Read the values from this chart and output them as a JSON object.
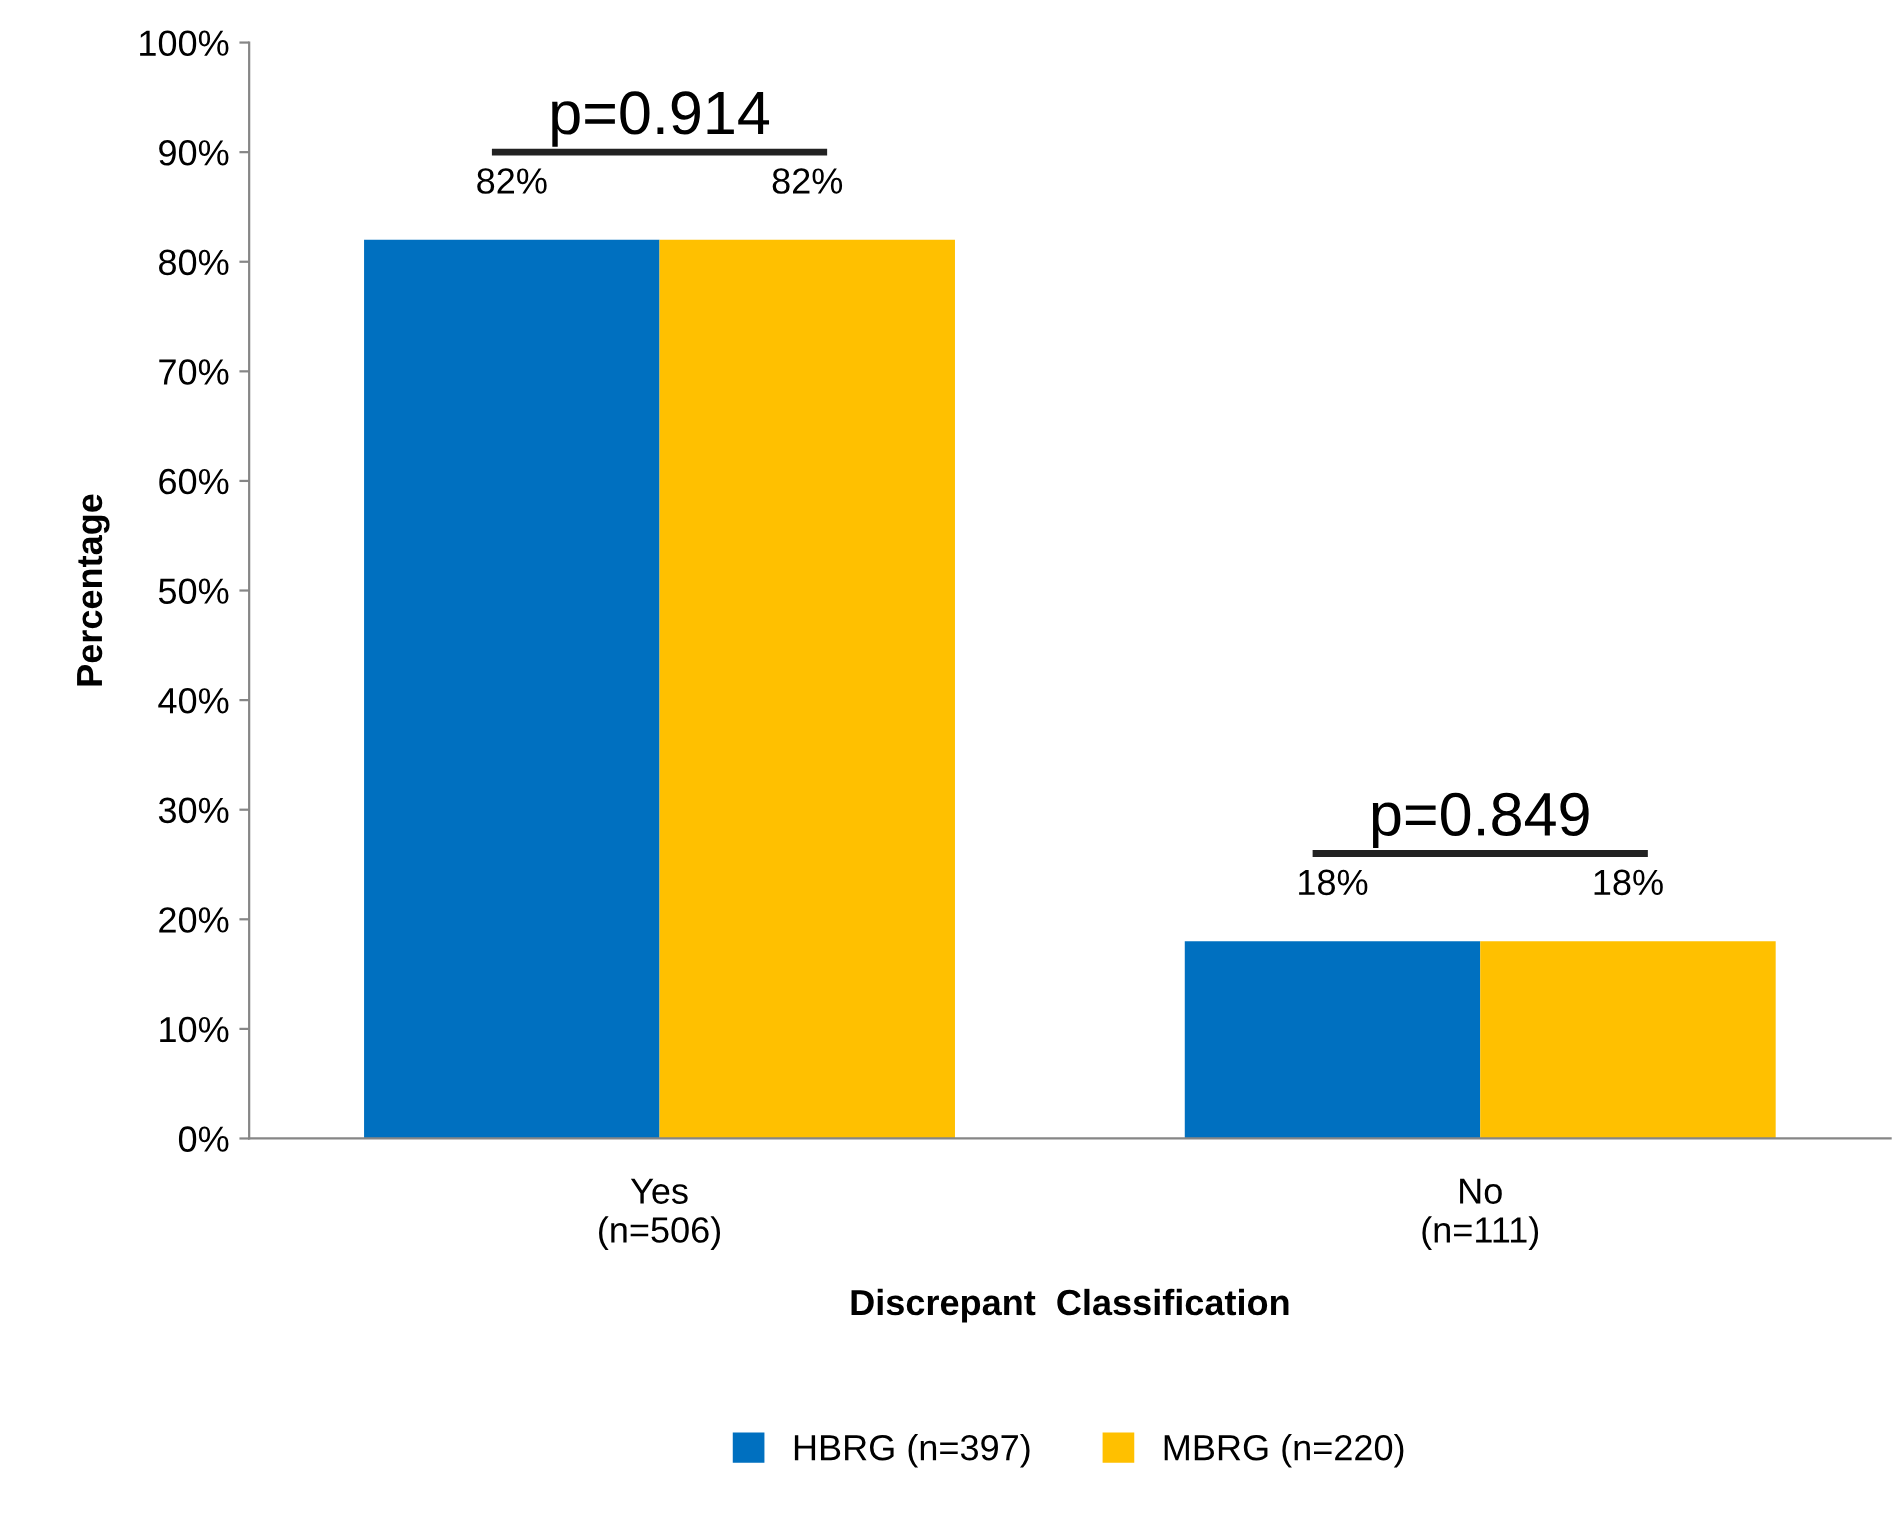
{
  "chart_data": {
    "type": "bar",
    "xlabel": "Discrepant  Classification",
    "ylabel": "Percentage",
    "categories": [
      "Yes\n(n=506)",
      "No\n(n=111)"
    ],
    "series": [
      {
        "name": "HBRG (n=397)",
        "color": "#0070c0",
        "values": [
          82,
          18
        ],
        "value_labels": [
          "82%",
          "18%"
        ]
      },
      {
        "name": "MBRG (n=220)",
        "color": "#ffc000",
        "values": [
          82,
          18
        ],
        "value_labels": [
          "82%",
          "18%"
        ]
      }
    ],
    "ylim": [
      0,
      100
    ],
    "yticks": [
      {
        "value": 0,
        "label": "0%"
      },
      {
        "value": 10,
        "label": "10%"
      },
      {
        "value": 20,
        "label": "20%"
      },
      {
        "value": 30,
        "label": "30%"
      },
      {
        "value": 40,
        "label": "40%"
      },
      {
        "value": 50,
        "label": "50%"
      },
      {
        "value": 60,
        "label": "60%"
      },
      {
        "value": 70,
        "label": "70%"
      },
      {
        "value": 80,
        "label": "80%"
      },
      {
        "value": 90,
        "label": "90%"
      },
      {
        "value": 100,
        "label": "100%"
      }
    ],
    "annotations": [
      "p=0.914",
      "p=0.849"
    ],
    "grid": false,
    "legend": "bottom"
  }
}
